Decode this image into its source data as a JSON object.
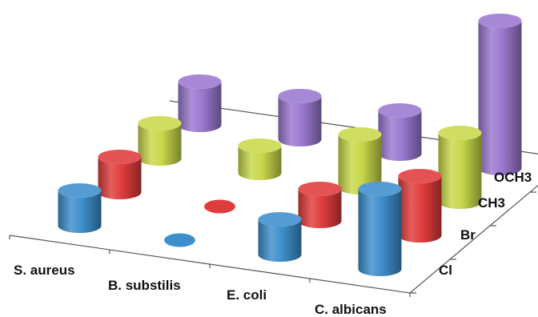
{
  "chart_data": {
    "type": "bar",
    "style": "3d-cylinder",
    "categories": [
      "S. aureus",
      "B. substilis",
      "E. coli",
      "C. albicans"
    ],
    "series_labels": [
      "Cl",
      "Br",
      "CH3",
      "OCH3"
    ],
    "series": [
      {
        "label": "Cl",
        "color": "#3d8fcc",
        "values": [
          44,
          0,
          44,
          100
        ]
      },
      {
        "label": "Br",
        "color": "#e03c3c",
        "values": [
          44,
          0,
          40,
          74
        ]
      },
      {
        "label": "CH3",
        "color": "#c8d84a",
        "values": [
          44,
          34,
          66,
          86
        ]
      },
      {
        "label": "OCH3",
        "color": "#9b78d0",
        "values": [
          54,
          54,
          54,
          184
        ]
      }
    ]
  }
}
